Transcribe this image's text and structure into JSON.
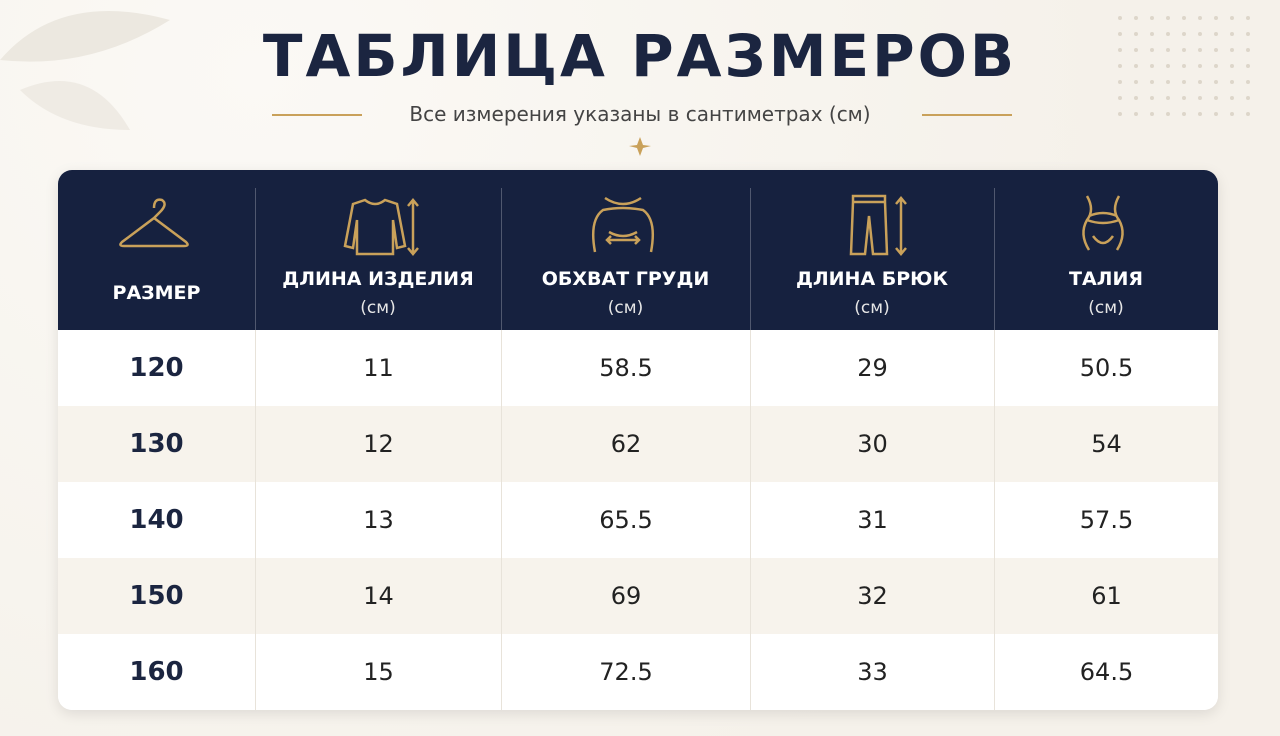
{
  "header": {
    "title": "ТАБЛИЦА РАЗМЕРОВ",
    "subtitle": "Все измерения указаны в сантиметрах (см)"
  },
  "table": {
    "columns": [
      {
        "label": "РАЗМЕР"
      },
      {
        "label": "ДЛИНА ИЗДЕЛИЯ",
        "unit": "(см)"
      },
      {
        "label": "ОБХВАТ ГРУДИ",
        "unit": "(см)"
      },
      {
        "label": "ДЛИНА БРЮК",
        "unit": "(см)"
      },
      {
        "label": "ТАЛИЯ",
        "unit": "(см)"
      }
    ],
    "rows": [
      [
        120,
        11,
        58.5,
        29,
        50.5
      ],
      [
        130,
        12,
        62,
        30,
        54
      ],
      [
        140,
        13,
        65.5,
        31,
        57.5
      ],
      [
        150,
        14,
        69,
        32,
        61
      ],
      [
        160,
        15,
        72.5,
        33,
        64.5
      ]
    ]
  }
}
